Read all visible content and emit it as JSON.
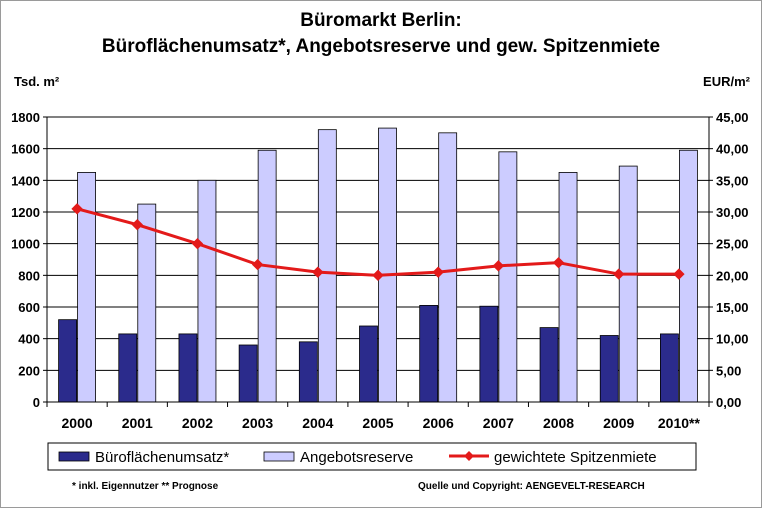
{
  "title_line1": "Büromarkt Berlin:",
  "title_line2": "Büroflächenumsatz*, Angebotsreserve und gew. Spitzenmiete",
  "left_axis_unit": "Tsd. m²",
  "right_axis_unit": "EUR/m²",
  "footnote": "* inkl. Eigennutzer ** Prognose",
  "source": "Quelle und Copyright: AENGEVELT-RESEARCH",
  "colors": {
    "umsatz": "#2b2b8c",
    "angebot": "#ccccff",
    "miete": "#e31a1a",
    "grid": "#000000"
  },
  "chart_data": {
    "type": "bar",
    "categories": [
      "2000",
      "2001",
      "2002",
      "2003",
      "2004",
      "2005",
      "2006",
      "2007",
      "2008",
      "2009",
      "2010**"
    ],
    "series": [
      {
        "name": "Büroflächenumsatz*",
        "type": "bar",
        "axis": "left",
        "values": [
          520,
          430,
          430,
          360,
          380,
          480,
          610,
          605,
          470,
          420,
          430
        ]
      },
      {
        "name": "Angebotsreserve",
        "type": "bar",
        "axis": "left",
        "values": [
          1450,
          1250,
          1400,
          1590,
          1720,
          1730,
          1700,
          1580,
          1450,
          1490,
          1590
        ]
      },
      {
        "name": "gewichtete Spitzenmiete",
        "type": "line",
        "axis": "right",
        "values": [
          30.5,
          28.0,
          25.0,
          21.7,
          20.5,
          20.0,
          20.5,
          21.5,
          22.0,
          20.2,
          20.2
        ]
      }
    ],
    "y_left": {
      "min": 0,
      "max": 1800,
      "step": 200,
      "ticks": [
        "0",
        "200",
        "400",
        "600",
        "800",
        "1000",
        "1200",
        "1400",
        "1600",
        "1800"
      ]
    },
    "y_right": {
      "min": 0,
      "max": 45,
      "step": 5,
      "ticks": [
        "0,00",
        "5,00",
        "10,00",
        "15,00",
        "20,00",
        "25,00",
        "30,00",
        "35,00",
        "40,00",
        "45,00"
      ]
    },
    "grid": true,
    "legend_position": "bottom"
  }
}
